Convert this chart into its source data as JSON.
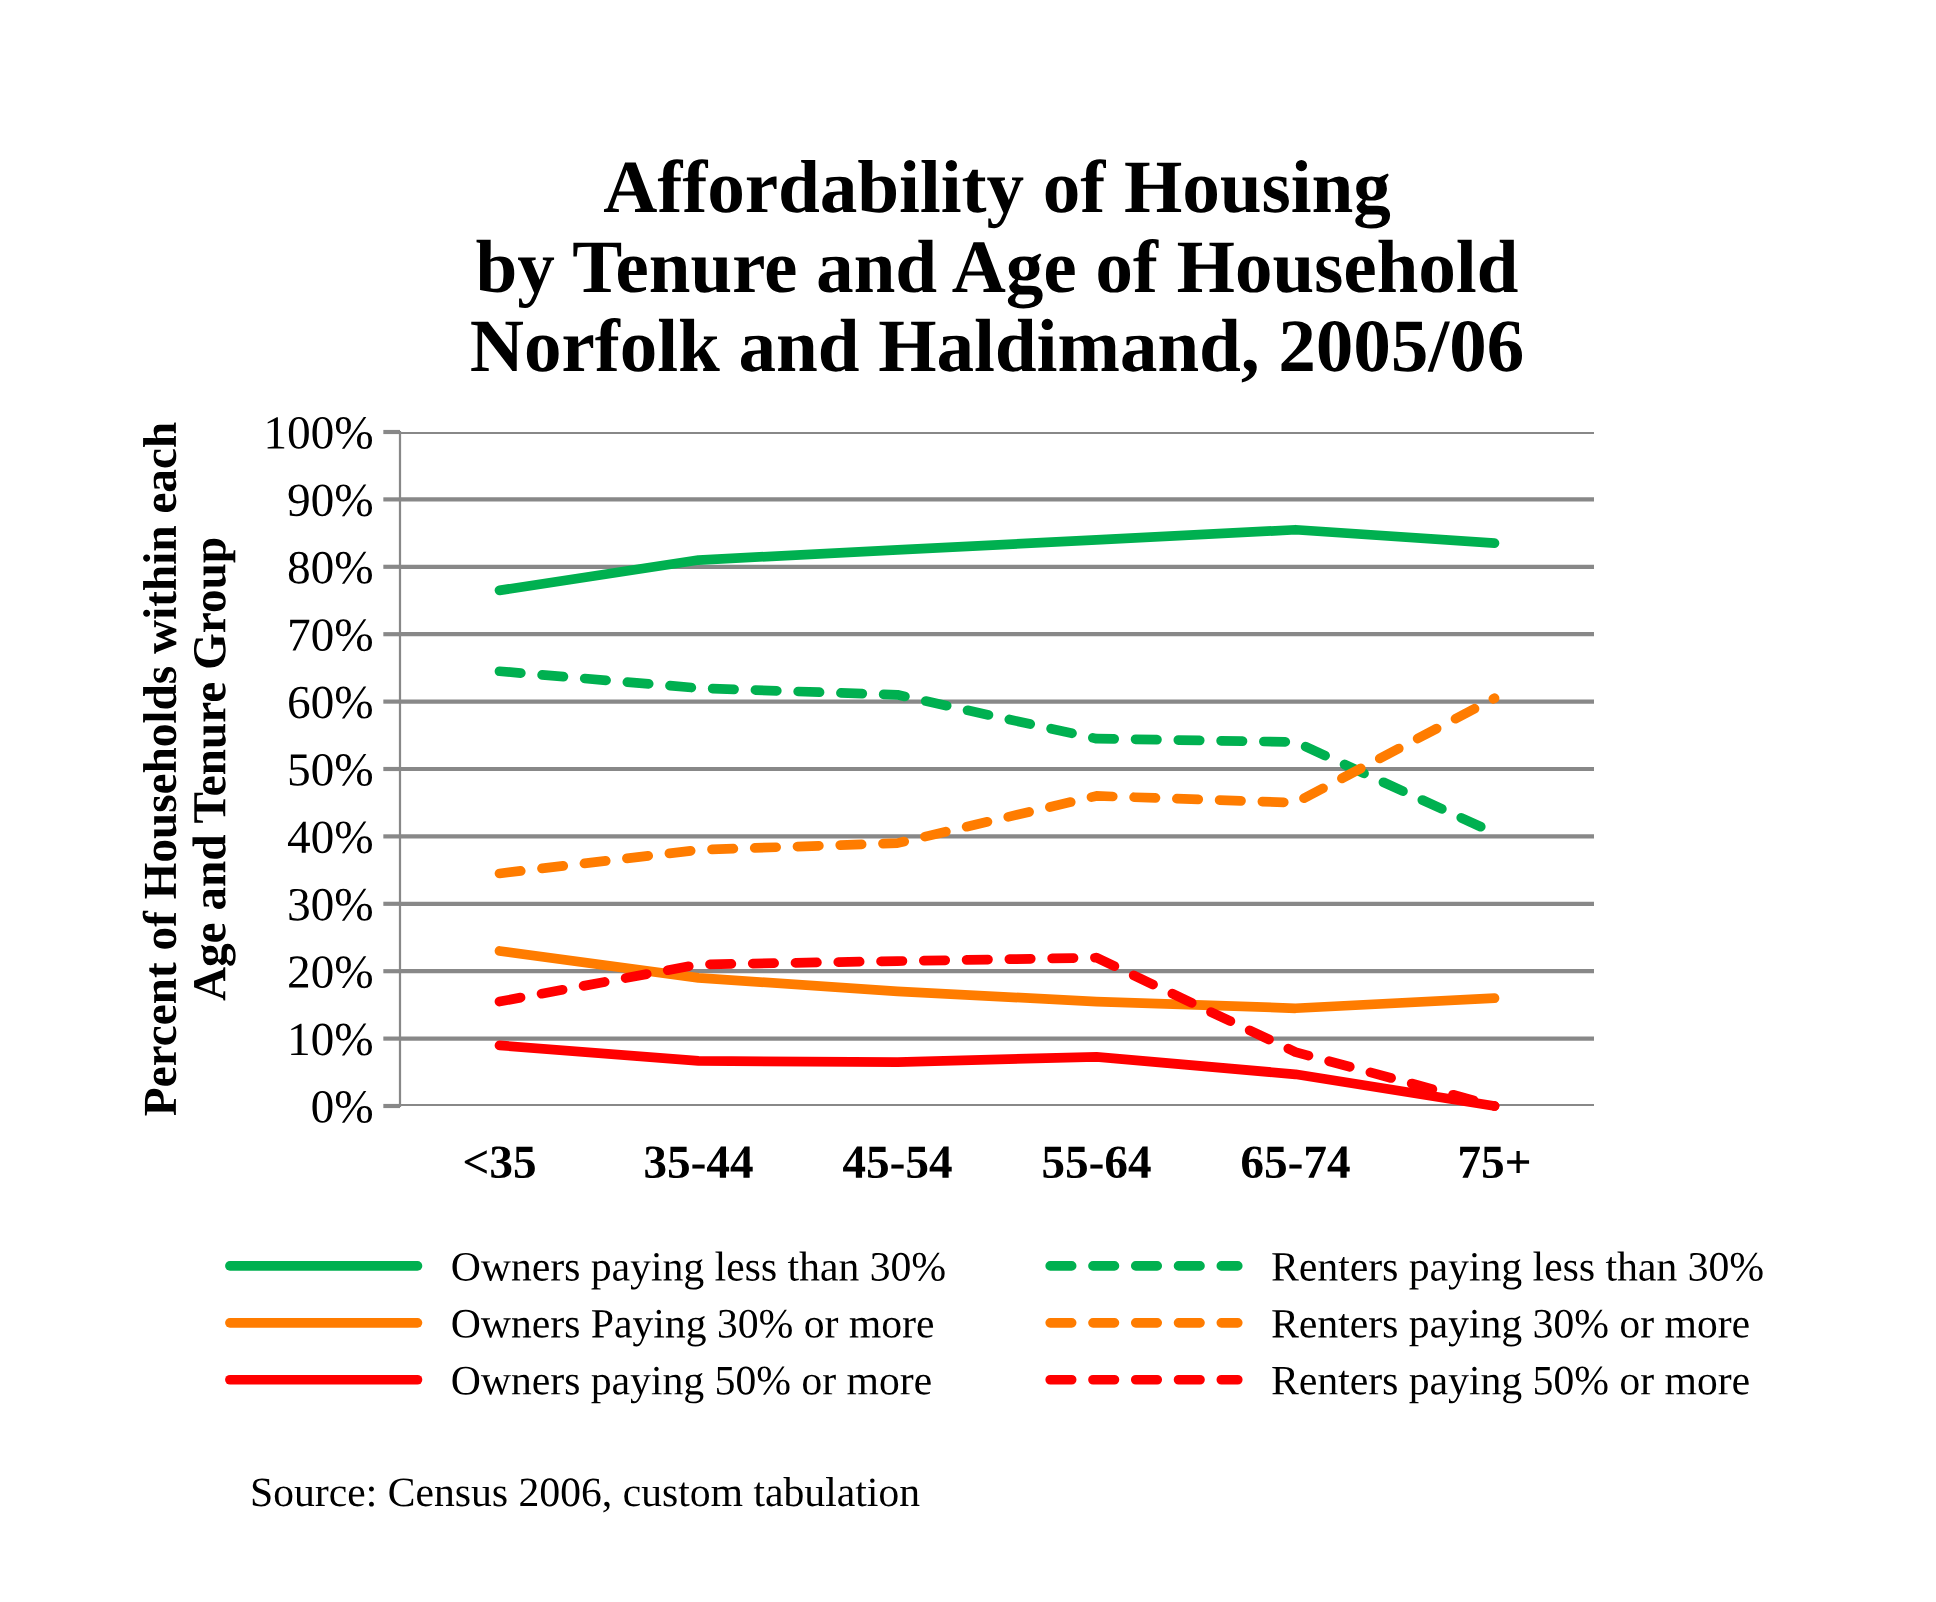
{
  "chart_data": {
    "type": "line",
    "title": "Affordability of Housing\nby Tenure and Age of Household\nNorfolk and Haldimand, 2005/06",
    "ylabel": "Percent of Households within each\nAge and Tenure Group",
    "categories": [
      "<35",
      "35-44",
      "45-54",
      "55-64",
      "65-74",
      "75+"
    ],
    "series": [
      {
        "name": "Owners paying less than 30%",
        "color": "#00b050",
        "line_style": "solid",
        "values": [
          76.5,
          81,
          82.5,
          84,
          85.5,
          83.5
        ]
      },
      {
        "name": "Owners Paying 30% or more",
        "color": "#ff7c00",
        "line_style": "solid",
        "values": [
          23,
          19,
          17,
          15.5,
          14.5,
          16
        ]
      },
      {
        "name": "Owners paying 50% or more",
        "color": "#ff0000",
        "line_style": "solid",
        "values": [
          9,
          6.7,
          6.5,
          7.3,
          4.7,
          0
        ]
      },
      {
        "name": "Renters paying less than 30%",
        "color": "#00b050",
        "line_style": "dashed",
        "values": [
          64.5,
          62,
          61,
          54.5,
          54,
          40.5
        ]
      },
      {
        "name": "Renters paying 30% or more",
        "color": "#ff7c00",
        "line_style": "dashed",
        "values": [
          34.5,
          38,
          39,
          46,
          45,
          60.5
        ]
      },
      {
        "name": "Renters paying 50% or more",
        "color": "#ff0000",
        "line_style": "dashed",
        "values": [
          15.5,
          21,
          21.5,
          22,
          8,
          0
        ]
      }
    ],
    "ylim": [
      0,
      100
    ],
    "yticks": [
      {
        "value": 0,
        "label": "0%"
      },
      {
        "value": 10,
        "label": "10%"
      },
      {
        "value": 20,
        "label": "20%"
      },
      {
        "value": 30,
        "label": "30%"
      },
      {
        "value": 40,
        "label": "40%"
      },
      {
        "value": 50,
        "label": "50%"
      },
      {
        "value": 60,
        "label": "60%"
      },
      {
        "value": 70,
        "label": "70%"
      },
      {
        "value": 80,
        "label": "80%"
      },
      {
        "value": 90,
        "label": "90%"
      },
      {
        "value": 100,
        "label": "100%"
      }
    ],
    "grid": "y",
    "legend": "bottom",
    "marker": "none",
    "annotations": [
      "Source: Census 2006, custom tabulation"
    ]
  }
}
